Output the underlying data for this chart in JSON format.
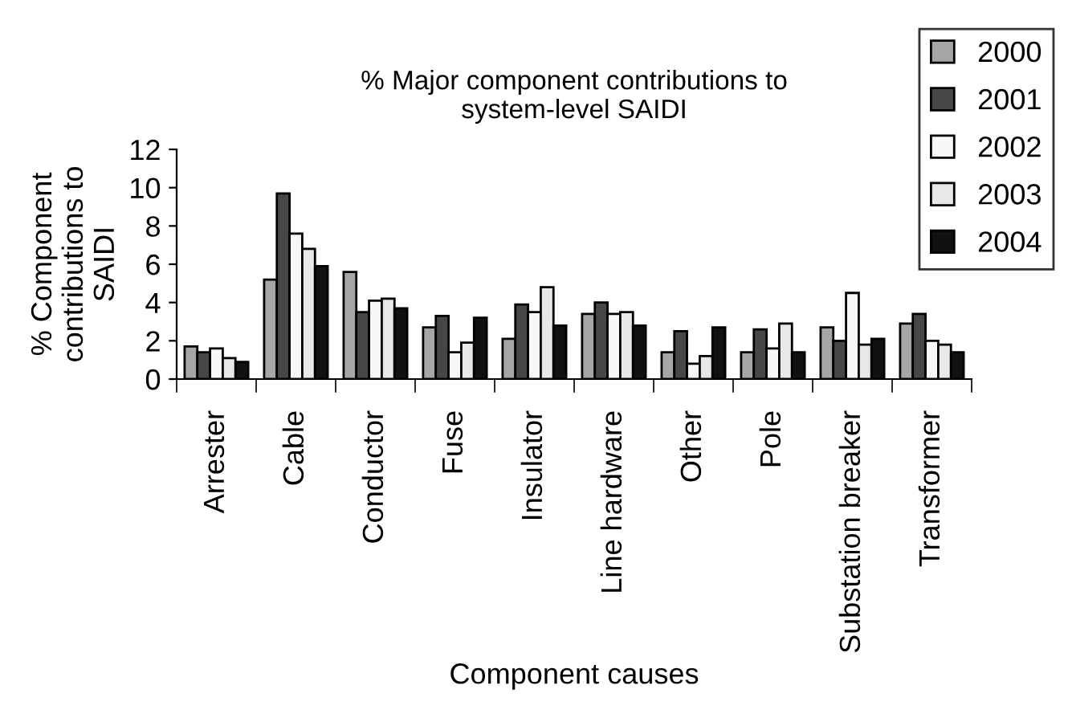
{
  "chart_data": {
    "type": "bar",
    "title": "% Major component contributions to\nsystem-level SAIDI",
    "xlabel": "Component causes",
    "ylabel": "% Component\ncontributions to\nSAIDI",
    "categories": [
      "Arrester",
      "Cable",
      "Conductor",
      "Fuse",
      "Insulator",
      "Line hardware",
      "Other",
      "Pole",
      "Substation breaker",
      "Transformer"
    ],
    "series": [
      {
        "name": "2000",
        "color": "#a6a6a6",
        "values": [
          1.7,
          5.2,
          5.6,
          2.7,
          2.1,
          3.4,
          1.4,
          1.4,
          2.7,
          2.9
        ]
      },
      {
        "name": "2001",
        "color": "#474747",
        "values": [
          1.4,
          9.7,
          3.5,
          3.3,
          3.9,
          4.0,
          2.5,
          2.6,
          2.0,
          3.4
        ]
      },
      {
        "name": "2002",
        "color": "#f7f7f7",
        "values": [
          1.6,
          7.6,
          4.1,
          1.4,
          3.5,
          3.4,
          0.8,
          1.6,
          4.5,
          2.0
        ]
      },
      {
        "name": "2003",
        "color": "#e8e8e8",
        "values": [
          1.1,
          6.8,
          4.2,
          1.9,
          4.8,
          3.5,
          1.2,
          2.9,
          1.8,
          1.8
        ]
      },
      {
        "name": "2004",
        "color": "#111111",
        "values": [
          0.9,
          5.9,
          3.7,
          3.2,
          2.8,
          2.8,
          2.7,
          1.4,
          2.1,
          1.4
        ]
      }
    ],
    "ylim": [
      0,
      12
    ],
    "yticks": [
      0,
      2,
      4,
      6,
      8,
      10,
      12
    ],
    "grid": false,
    "legend": "top right"
  }
}
